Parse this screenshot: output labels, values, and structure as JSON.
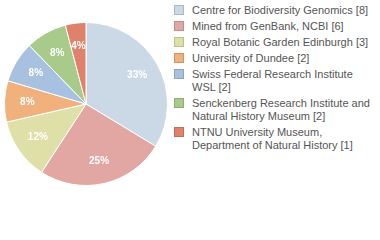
{
  "chart_data": {
    "type": "pie",
    "categories": [
      "Centre for Biodiversity Genomics [8]",
      "Mined from GenBank, NCBI [6]",
      "Royal Botanic Garden Edinburgh [3]",
      "University of Dundee [2]",
      "Swiss Federal Research Institute WSL [2]",
      "Senckenberg Research Institute and Natural History Museum [2]",
      "NTNU University Museum, Department of Natural History [1]"
    ],
    "values": [
      33,
      25,
      12,
      8,
      8,
      8,
      4
    ],
    "value_labels": [
      "33%",
      "25%",
      "12%",
      "8%",
      "8%",
      "8%",
      "4%"
    ],
    "colors": [
      "#cbd8e6",
      "#e2a7a3",
      "#dfe0a7",
      "#f0b17c",
      "#a9c1e1",
      "#a8ca8b",
      "#e0826b"
    ],
    "data_labels": true,
    "legend": "right"
  }
}
